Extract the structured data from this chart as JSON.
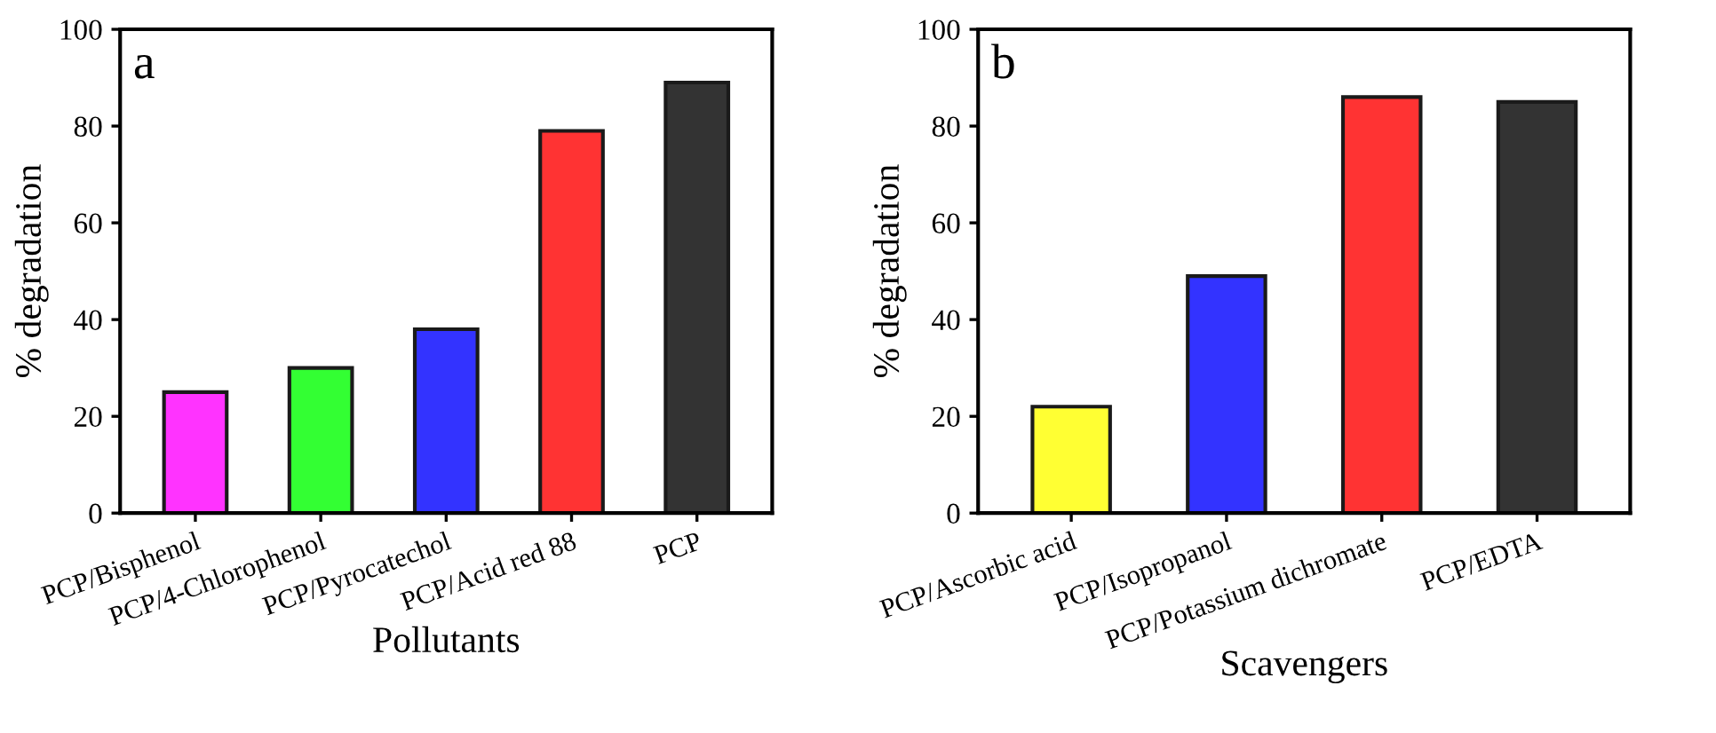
{
  "chart_data": [
    {
      "type": "bar",
      "xlabel": "Pollutants",
      "ylabel": "% degradation",
      "annotations": [
        "a"
      ],
      "categories": [
        "PCP/Bisphenol",
        "PCP/4-Chlorophenol",
        "PCP/Pyrocatechol",
        "PCP/Acid red 88",
        "PCP"
      ],
      "values": [
        25,
        30,
        38,
        79,
        89
      ],
      "colors": [
        "#ff33ff",
        "#33ff33",
        "#3333ff",
        "#ff3333",
        "#333333"
      ],
      "ylim": [
        0,
        100
      ],
      "yticks": [
        0,
        20,
        40,
        60,
        80,
        100
      ],
      "grid": false,
      "legend": false
    },
    {
      "type": "bar",
      "xlabel": "Scavengers",
      "ylabel": "% degradation",
      "annotations": [
        "b"
      ],
      "categories": [
        "PCP/Ascorbic acid",
        "PCP/Isopropanol",
        "PCP/Potassium dichromate",
        "PCP/EDTA"
      ],
      "values": [
        22,
        49,
        86,
        85
      ],
      "colors": [
        "#ffff33",
        "#3333ff",
        "#ff3333",
        "#333333"
      ],
      "ylim": [
        0,
        100
      ],
      "yticks": [
        0,
        20,
        40,
        60,
        80,
        100
      ],
      "grid": false,
      "legend": false
    }
  ]
}
